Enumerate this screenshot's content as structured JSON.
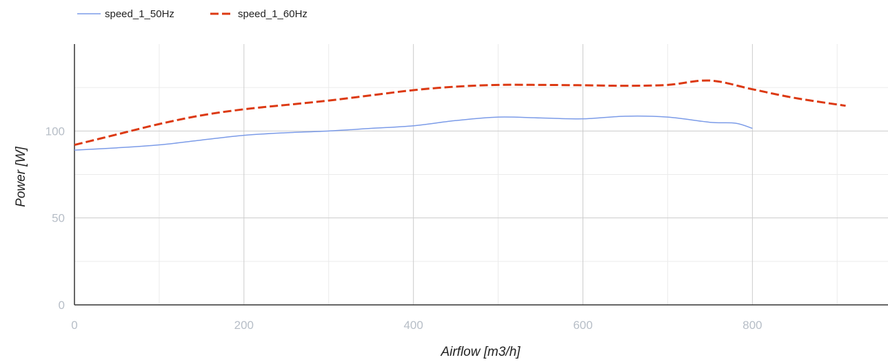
{
  "chart_data": {
    "type": "line",
    "title": "",
    "xlabel": "Airflow [m3/h]",
    "ylabel": "Power [W]",
    "xlim": [
      0,
      960
    ],
    "ylim": [
      0,
      150
    ],
    "x_ticks": [
      0,
      200,
      400,
      600,
      800
    ],
    "y_ticks": [
      0,
      50,
      100
    ],
    "x_minor_gridlines": [
      100,
      300,
      500,
      700,
      900
    ],
    "y_minor_gridlines": [
      25,
      75,
      125
    ],
    "grid": true,
    "legend_position": "top-left",
    "series": [
      {
        "name": "speed_1_50Hz",
        "color": "#7b9be8",
        "dash": "solid",
        "points": [
          [
            0,
            89
          ],
          [
            50,
            90.3
          ],
          [
            100,
            92
          ],
          [
            150,
            94.8
          ],
          [
            200,
            97.5
          ],
          [
            250,
            99
          ],
          [
            300,
            100
          ],
          [
            350,
            101.5
          ],
          [
            400,
            103
          ],
          [
            450,
            106
          ],
          [
            500,
            108
          ],
          [
            550,
            107.5
          ],
          [
            600,
            107
          ],
          [
            650,
            108.5
          ],
          [
            700,
            108
          ],
          [
            750,
            105
          ],
          [
            780,
            104.5
          ],
          [
            800,
            101.5
          ]
        ]
      },
      {
        "name": "speed_1_60Hz",
        "color": "#dc3912",
        "dash": "dashed",
        "points": [
          [
            0,
            92
          ],
          [
            50,
            98
          ],
          [
            100,
            104
          ],
          [
            150,
            109
          ],
          [
            200,
            112.5
          ],
          [
            250,
            115
          ],
          [
            300,
            117.5
          ],
          [
            350,
            120.5
          ],
          [
            400,
            123.5
          ],
          [
            450,
            125.5
          ],
          [
            500,
            126.5
          ],
          [
            550,
            126.5
          ],
          [
            600,
            126.3
          ],
          [
            650,
            126
          ],
          [
            700,
            126.5
          ],
          [
            750,
            129
          ],
          [
            800,
            124
          ],
          [
            850,
            119
          ],
          [
            910,
            114.5
          ]
        ]
      }
    ]
  }
}
